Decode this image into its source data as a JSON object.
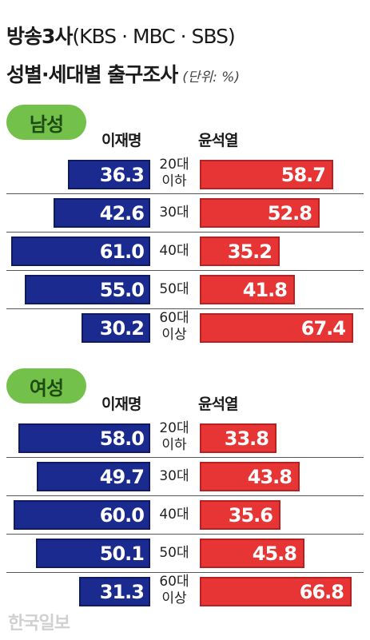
{
  "title": {
    "line1_bold": "방송3사",
    "line1_light": "(KBS · MBC · SBS)",
    "line2": "성별·세대별 출구조사",
    "unit": "(단위: %)"
  },
  "watermark": "한국일보",
  "colors": {
    "lee": "#1a2a8e",
    "yoon": "#e73434",
    "badge": "#73c04b"
  },
  "chart_data": [
    {
      "type": "bar",
      "group": "남성",
      "candidates": [
        "이재명",
        "윤석열"
      ],
      "categories": [
        "20대\n이하",
        "30대",
        "40대",
        "50대",
        "60대\n이상"
      ],
      "series": [
        {
          "name": "이재명",
          "values": [
            36.3,
            42.6,
            61.0,
            55.0,
            30.2
          ]
        },
        {
          "name": "윤석열",
          "values": [
            58.7,
            52.8,
            35.2,
            41.8,
            67.4
          ]
        }
      ]
    },
    {
      "type": "bar",
      "group": "여성",
      "candidates": [
        "이재명",
        "윤석열"
      ],
      "categories": [
        "20대\n이하",
        "30대",
        "40대",
        "50대",
        "60대\n이상"
      ],
      "series": [
        {
          "name": "이재명",
          "values": [
            58.0,
            49.7,
            60.0,
            50.1,
            31.3
          ]
        },
        {
          "name": "윤석열",
          "values": [
            33.8,
            43.8,
            35.6,
            45.8,
            66.8
          ]
        }
      ]
    }
  ]
}
